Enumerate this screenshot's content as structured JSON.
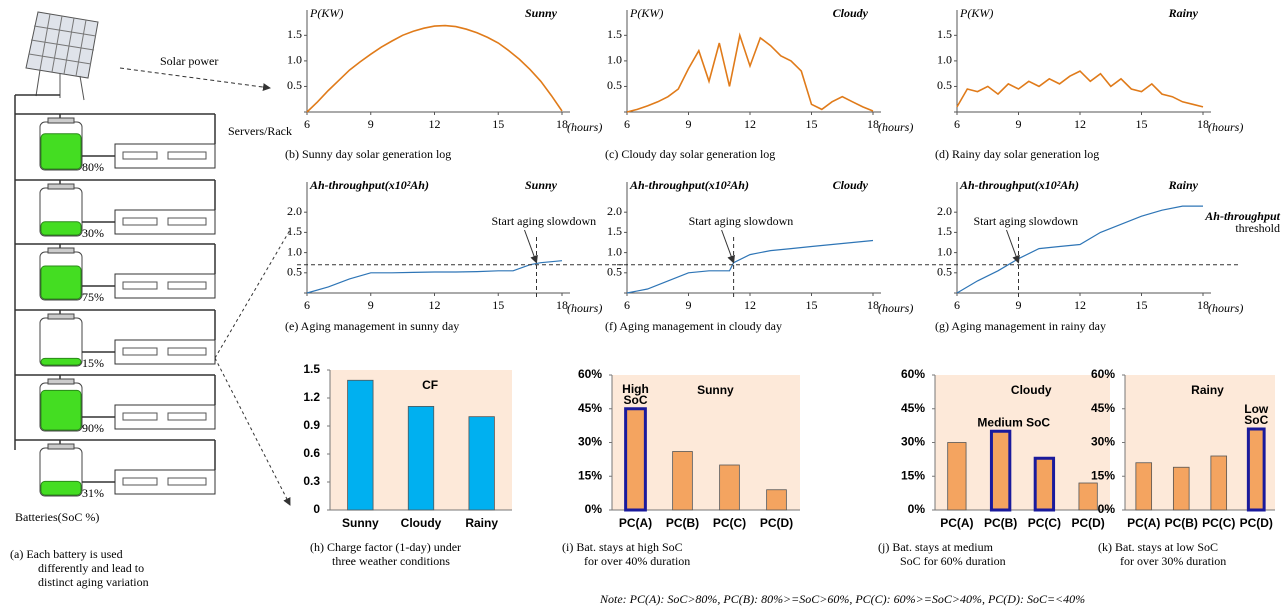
{
  "diagram": {
    "solar_label": "Solar power",
    "servers_label": "Servers/Rack",
    "batteries_label": "Batteries(SoC %)",
    "soc": [
      {
        "value": 80,
        "label": "80%"
      },
      {
        "value": 30,
        "label": "30%"
      },
      {
        "value": 75,
        "label": "75%"
      },
      {
        "value": 15,
        "label": "15%"
      },
      {
        "value": 90,
        "label": "90%"
      },
      {
        "value": 31,
        "label": "31%"
      }
    ],
    "caption": [
      "(a)  Each battery is used",
      "differently and lead to",
      "distinct aging variation"
    ]
  },
  "note": "Note: PC(A): SoC>80%, PC(B): 80%>=SoC>60%, PC(C): 60%>=SoC>40%, PC(D): SoC=<40%",
  "chart_data": [
    {
      "type": "line",
      "title": "Sunny",
      "ylabel": "P(KW)",
      "xlabel": "(hours)",
      "color": "#e07b1a",
      "caption": [
        "(b)  Sunny day solar generation log"
      ],
      "x": [
        6,
        6.5,
        7,
        7.5,
        8,
        8.5,
        9,
        9.5,
        10,
        10.5,
        11,
        11.5,
        12,
        12.5,
        13,
        13.5,
        14,
        14.5,
        15,
        15.5,
        16,
        16.5,
        17,
        17.5,
        18
      ],
      "values": [
        0,
        0.2,
        0.42,
        0.62,
        0.82,
        0.98,
        1.13,
        1.27,
        1.39,
        1.5,
        1.58,
        1.64,
        1.68,
        1.69,
        1.67,
        1.62,
        1.55,
        1.46,
        1.35,
        1.2,
        1.03,
        0.83,
        0.6,
        0.32,
        0.02
      ],
      "xlim": [
        6,
        18
      ],
      "xticks": [
        6,
        9,
        12,
        15,
        18
      ],
      "ylim": [
        0,
        1.8
      ],
      "yticks": [
        0.5,
        {
          "value": 1,
          "label": "1.0"
        },
        1.5
      ]
    },
    {
      "type": "line",
      "title": "Cloudy",
      "ylabel": "P(KW)",
      "xlabel": "(hours)",
      "color": "#e07b1a",
      "caption": [
        "(c)  Cloudy day solar generation log"
      ],
      "x": [
        6,
        6.5,
        7,
        7.5,
        8,
        8.5,
        9,
        9.5,
        10,
        10.5,
        11,
        11.5,
        12,
        12.5,
        13,
        13.5,
        14,
        14.5,
        15,
        15.5,
        16,
        16.5,
        17,
        17.5,
        18
      ],
      "values": [
        0,
        0.05,
        0.12,
        0.2,
        0.3,
        0.45,
        0.85,
        1.2,
        0.6,
        1.35,
        0.5,
        1.5,
        0.9,
        1.45,
        1.3,
        1.1,
        1.0,
        0.8,
        0.15,
        0.05,
        0.2,
        0.3,
        0.2,
        0.1,
        0.02
      ],
      "xlim": [
        6,
        18
      ],
      "xticks": [
        6,
        9,
        12,
        15,
        18
      ],
      "ylim": [
        0,
        1.8
      ],
      "yticks": [
        0.5,
        {
          "value": 1,
          "label": "1.0"
        },
        1.5
      ]
    },
    {
      "type": "line",
      "title": "Rainy",
      "ylabel": "P(KW)",
      "xlabel": "(hours)",
      "color": "#e07b1a",
      "caption": [
        "(d)  Rainy day solar generation log"
      ],
      "x": [
        6,
        6.5,
        7,
        7.5,
        8,
        8.5,
        9,
        9.5,
        10,
        10.5,
        11,
        11.5,
        12,
        12.5,
        13,
        13.5,
        14,
        14.5,
        15,
        15.5,
        16,
        16.5,
        17,
        17.5,
        18
      ],
      "values": [
        0.1,
        0.45,
        0.4,
        0.5,
        0.35,
        0.55,
        0.45,
        0.6,
        0.5,
        0.65,
        0.55,
        0.7,
        0.8,
        0.6,
        0.75,
        0.5,
        0.65,
        0.45,
        0.4,
        0.55,
        0.35,
        0.3,
        0.2,
        0.15,
        0.1
      ],
      "xlim": [
        6,
        18
      ],
      "xticks": [
        6,
        9,
        12,
        15,
        18
      ],
      "ylim": [
        0,
        1.8
      ],
      "yticks": [
        0.5,
        {
          "value": 1,
          "label": "1.0"
        },
        1.5
      ]
    },
    {
      "type": "line",
      "title": "Sunny",
      "ylabel": "Ah-throughput(x10²Ah)",
      "xlabel": "(hours)",
      "color": "#2e75b6",
      "caption": [
        "(e)  Aging management in sunny day"
      ],
      "annotation": "Start aging slowdown",
      "slowdown": 16.8,
      "threshold": 0.7,
      "x": [
        6,
        7,
        8,
        9,
        10,
        11,
        12,
        13,
        14,
        15,
        15.7,
        16.5,
        17,
        18
      ],
      "values": [
        0,
        0.15,
        0.35,
        0.5,
        0.5,
        0.51,
        0.52,
        0.52,
        0.53,
        0.55,
        0.55,
        0.7,
        0.75,
        0.8
      ],
      "xlim": [
        6,
        18
      ],
      "xticks": [
        6,
        9,
        12,
        15,
        18
      ],
      "ylim": [
        0,
        2.5
      ],
      "yticks": [
        0.5,
        {
          "value": 1,
          "label": "1.0"
        },
        1.5,
        {
          "value": 2,
          "label": "2.0"
        }
      ]
    },
    {
      "type": "line",
      "title": "Cloudy",
      "ylabel": "Ah-throughput(x10²Ah)",
      "xlabel": "(hours)",
      "color": "#2e75b6",
      "caption": [
        "(f)  Aging management in cloudy day"
      ],
      "annotation": "Start aging slowdown",
      "slowdown": 11.2,
      "threshold": 0.7,
      "x": [
        6,
        7,
        8,
        9,
        10,
        11,
        11.2,
        12,
        13,
        14,
        15,
        16,
        17,
        18
      ],
      "values": [
        0,
        0.1,
        0.3,
        0.5,
        0.55,
        0.55,
        0.75,
        0.95,
        1.05,
        1.1,
        1.15,
        1.2,
        1.25,
        1.3
      ],
      "xlim": [
        6,
        18
      ],
      "xticks": [
        6,
        9,
        12,
        15,
        18
      ],
      "ylim": [
        0,
        2.5
      ],
      "yticks": [
        0.5,
        {
          "value": 1,
          "label": "1.0"
        },
        1.5,
        {
          "value": 2,
          "label": "2.0"
        }
      ]
    },
    {
      "type": "line",
      "title": "Rainy",
      "ylabel": "Ah-throughput(x10²Ah)",
      "xlabel": "(hours)",
      "color": "#2e75b6",
      "caption": [
        "(g)  Aging management in rainy day"
      ],
      "annotation": "Start aging slowdown",
      "slowdown": 9,
      "threshold": 0.7,
      "threshold_label": [
        "Ah-throughput",
        "threshold"
      ],
      "x": [
        6,
        7,
        8,
        9,
        10,
        11,
        12,
        13,
        14,
        15,
        16,
        17,
        18
      ],
      "values": [
        0,
        0.3,
        0.55,
        0.85,
        1.1,
        1.15,
        1.2,
        1.5,
        1.7,
        1.9,
        2.05,
        2.15,
        2.15
      ],
      "xlim": [
        6,
        18
      ],
      "xticks": [
        6,
        9,
        12,
        15,
        18
      ],
      "ylim": [
        0,
        2.5
      ],
      "yticks": [
        0.5,
        {
          "value": 1,
          "label": "1.0"
        },
        1.5,
        {
          "value": 2,
          "label": "2.0"
        }
      ]
    },
    {
      "type": "bar",
      "title": "CF",
      "color": "#00b0f0",
      "background": "#fde9d9",
      "caption": [
        "(h)  Charge factor (1-day) under",
        "three weather conditions"
      ],
      "categories": [
        "Sunny",
        "Cloudy",
        "Rainy"
      ],
      "values": [
        1.39,
        1.11,
        1.0
      ],
      "ylim": [
        0,
        1.5
      ],
      "yticks": [
        0,
        0.3,
        0.6,
        0.9,
        1.2,
        1.5
      ]
    },
    {
      "type": "bar",
      "title": "Sunny",
      "color": "#f4a460",
      "background": "#fde9d9",
      "highlight_color": "#1a1a9c",
      "caption": [
        "(i)  Bat. stays at high SoC",
        "for over 40% duration"
      ],
      "highlight": [
        0
      ],
      "annotation": [
        "High",
        "SoC"
      ],
      "categories": [
        "PC(A)",
        "PC(B)",
        "PC(C)",
        "PC(D)"
      ],
      "values": [
        45,
        26,
        20,
        9
      ],
      "ylim": [
        0,
        60
      ],
      "yticks": [
        {
          "value": 0,
          "label": "0%"
        },
        {
          "value": 15,
          "label": "15%"
        },
        {
          "value": 30,
          "label": "30%"
        },
        {
          "value": 45,
          "label": "45%"
        },
        {
          "value": 60,
          "label": "60%"
        }
      ]
    },
    {
      "type": "bar",
      "title": "Cloudy",
      "color": "#f4a460",
      "background": "#fde9d9",
      "highlight_color": "#1a1a9c",
      "caption": [
        "(j)  Bat. stays at medium",
        "SoC for 60% duration"
      ],
      "highlight": [
        1,
        2
      ],
      "annotation": [
        "Medium SoC"
      ],
      "categories": [
        "PC(A)",
        "PC(B)",
        "PC(C)",
        "PC(D)"
      ],
      "values": [
        30,
        35,
        23,
        12
      ],
      "ylim": [
        0,
        60
      ],
      "yticks": [
        {
          "value": 0,
          "label": "0%"
        },
        {
          "value": 15,
          "label": "15%"
        },
        {
          "value": 30,
          "label": "30%"
        },
        {
          "value": 45,
          "label": "45%"
        },
        {
          "value": 60,
          "label": "60%"
        }
      ]
    },
    {
      "type": "bar",
      "title": "Rainy",
      "color": "#f4a460",
      "background": "#fde9d9",
      "highlight_color": "#1a1a9c",
      "caption": [
        "(k)  Bat. stays at low SoC",
        "for over 30% duration"
      ],
      "highlight": [
        3
      ],
      "annotation": [
        "Low",
        "SoC"
      ],
      "categories": [
        "PC(A)",
        "PC(B)",
        "PC(C)",
        "PC(D)"
      ],
      "values": [
        21,
        19,
        24,
        36
      ],
      "ylim": [
        0,
        60
      ],
      "yticks": [
        {
          "value": 0,
          "label": "0%"
        },
        {
          "value": 15,
          "label": "15%"
        },
        {
          "value": 30,
          "label": "30%"
        },
        {
          "value": 45,
          "label": "45%"
        },
        {
          "value": 60,
          "label": "60%"
        }
      ]
    }
  ]
}
